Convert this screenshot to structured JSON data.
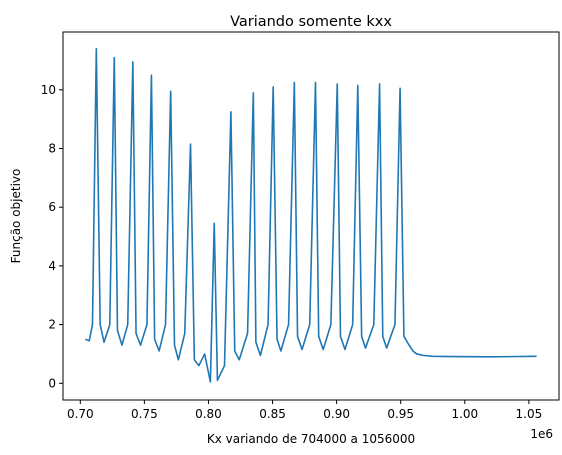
{
  "chart_data": {
    "type": "line",
    "title": "Variando somente kxx",
    "xlabel": "Kx variando de 704000 a 1056000",
    "ylabel": "Função objetivo",
    "x_offset_text": "1e6",
    "xlim": [
      0.6865,
      1.0735
    ],
    "ylim": [
      -0.57,
      11.97
    ],
    "x_ticks": [
      0.7,
      0.75,
      0.8,
      0.85,
      0.9,
      0.95,
      1.0,
      1.05
    ],
    "x_tick_labels": [
      "0.70",
      "0.75",
      "0.80",
      "0.85",
      "0.90",
      "0.95",
      "1.00",
      "1.05"
    ],
    "y_ticks": [
      0,
      2,
      4,
      6,
      8,
      10
    ],
    "y_tick_labels": [
      "0",
      "2",
      "4",
      "6",
      "8",
      "10"
    ],
    "grid": false,
    "series": [
      {
        "color": "#1f77b4",
        "x": [
          0.704,
          0.707,
          0.7095,
          0.7125,
          0.7155,
          0.7185,
          0.723,
          0.7265,
          0.729,
          0.7325,
          0.737,
          0.741,
          0.7435,
          0.747,
          0.752,
          0.7555,
          0.758,
          0.7615,
          0.7665,
          0.7705,
          0.7735,
          0.7765,
          0.7815,
          0.786,
          0.789,
          0.7925,
          0.797,
          0.8015,
          0.8045,
          0.807,
          0.8125,
          0.8175,
          0.8205,
          0.824,
          0.8305,
          0.835,
          0.837,
          0.8405,
          0.8465,
          0.8505,
          0.8535,
          0.8565,
          0.8625,
          0.867,
          0.8695,
          0.873,
          0.879,
          0.8835,
          0.886,
          0.8895,
          0.8955,
          0.9005,
          0.903,
          0.9065,
          0.9125,
          0.9165,
          0.9195,
          0.9225,
          0.929,
          0.9335,
          0.936,
          0.939,
          0.9455,
          0.9495,
          0.9525,
          0.9565,
          0.9595,
          0.9625,
          0.9675,
          0.975,
          0.99,
          1.02,
          1.056
        ],
        "y": [
          1.5,
          1.45,
          2.0,
          11.4,
          2.0,
          1.4,
          2.0,
          11.1,
          1.8,
          1.3,
          2.0,
          10.95,
          1.7,
          1.3,
          2.0,
          10.5,
          1.5,
          1.1,
          2.0,
          9.95,
          1.3,
          0.8,
          1.7,
          8.15,
          0.8,
          0.6,
          1.0,
          0.05,
          5.45,
          0.1,
          0.6,
          9.25,
          1.1,
          0.8,
          1.7,
          9.9,
          1.4,
          0.95,
          2.0,
          10.1,
          1.5,
          1.1,
          2.0,
          10.25,
          1.6,
          1.15,
          2.0,
          10.25,
          1.6,
          1.15,
          2.0,
          10.2,
          1.6,
          1.15,
          2.0,
          10.15,
          1.6,
          1.2,
          2.0,
          10.2,
          1.6,
          1.2,
          2.0,
          10.05,
          1.6,
          1.3,
          1.1,
          1.0,
          0.95,
          0.92,
          0.91,
          0.9,
          0.92
        ]
      }
    ]
  }
}
